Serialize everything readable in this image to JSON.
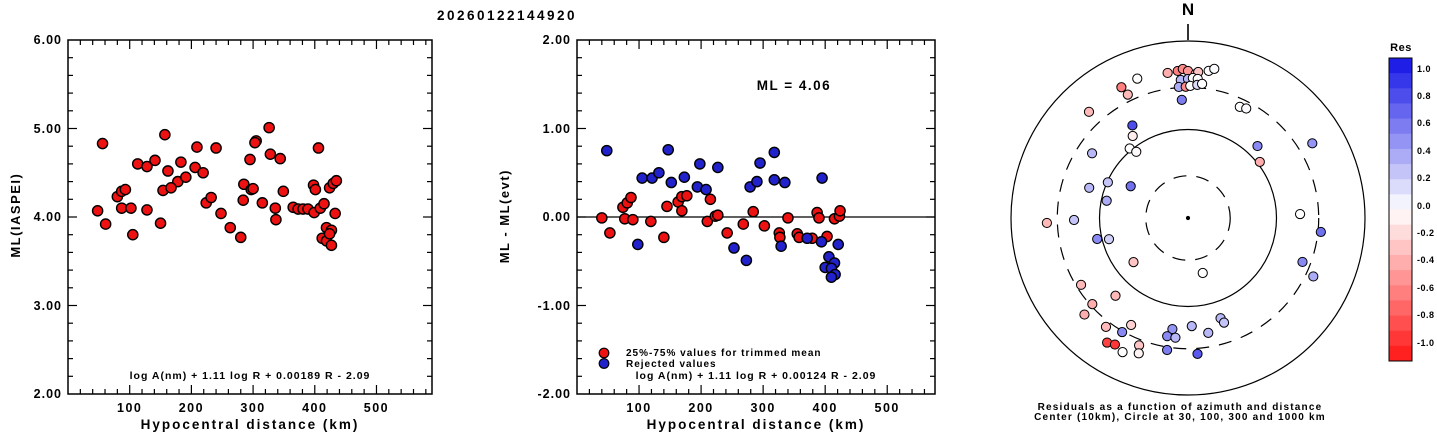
{
  "title": "20260122144920",
  "chart_data": [
    {
      "type": "scatter",
      "name": "magnitude-vs-distance",
      "xlabel": "Hypocentral distance (km)",
      "ylabel": "ML(IASPEI)",
      "annotation": "log A(nm) + 1.11 log R + 0.00189 R - 2.09",
      "xlim": [
        0,
        590
      ],
      "ylim": [
        2,
        6
      ],
      "xticks": [
        100,
        200,
        300,
        400,
        500
      ],
      "yticks": [
        {
          "v": 6,
          "label": "6.00"
        },
        {
          "v": 5,
          "label": "5.00"
        },
        {
          "v": 4,
          "label": "4.00"
        },
        {
          "v": 3,
          "label": "3.00"
        },
        {
          "v": 2,
          "label": "2.00"
        }
      ],
      "marker_color": "#ee1111",
      "points": [
        [
          56,
          4.83
        ],
        [
          157,
          4.93
        ],
        [
          209,
          4.79
        ],
        [
          240,
          4.78
        ],
        [
          305,
          4.86
        ],
        [
          326,
          5.01
        ],
        [
          406,
          4.78
        ],
        [
          113,
          4.6
        ],
        [
          128,
          4.57
        ],
        [
          141,
          4.64
        ],
        [
          162,
          4.52
        ],
        [
          183,
          4.62
        ],
        [
          206,
          4.56
        ],
        [
          219,
          4.5
        ],
        [
          178,
          4.4
        ],
        [
          191,
          4.45
        ],
        [
          154,
          4.3
        ],
        [
          167,
          4.33
        ],
        [
          80,
          4.23
        ],
        [
          87,
          4.29
        ],
        [
          93,
          4.31
        ],
        [
          48,
          4.07
        ],
        [
          87,
          4.1
        ],
        [
          102,
          4.1
        ],
        [
          128,
          4.08
        ],
        [
          61,
          3.92
        ],
        [
          105,
          3.8
        ],
        [
          150,
          3.93
        ],
        [
          224,
          4.16
        ],
        [
          232,
          4.22
        ],
        [
          248,
          4.04
        ],
        [
          263,
          3.88
        ],
        [
          280,
          3.77
        ],
        [
          285,
          4.37
        ],
        [
          297,
          4.31
        ],
        [
          284,
          4.19
        ],
        [
          303,
          4.84
        ],
        [
          328,
          4.71
        ],
        [
          344,
          4.66
        ],
        [
          295,
          4.65
        ],
        [
          300,
          4.32
        ],
        [
          349,
          4.29
        ],
        [
          315,
          4.16
        ],
        [
          336,
          4.1
        ],
        [
          337,
          3.97
        ],
        [
          365,
          4.11
        ],
        [
          373,
          4.09
        ],
        [
          381,
          4.09
        ],
        [
          389,
          4.09
        ],
        [
          399,
          4.05
        ],
        [
          409,
          4.1
        ],
        [
          415,
          4.15
        ],
        [
          398,
          4.36
        ],
        [
          401,
          4.31
        ],
        [
          424,
          4.33
        ],
        [
          430,
          4.38
        ],
        [
          435,
          4.41
        ],
        [
          433,
          4.04
        ],
        [
          419,
          3.88
        ],
        [
          427,
          3.85
        ],
        [
          412,
          3.76
        ],
        [
          419,
          3.73
        ],
        [
          427,
          3.68
        ],
        [
          424,
          3.81
        ]
      ]
    },
    {
      "type": "scatter",
      "name": "residual-vs-distance",
      "xlabel": "Hypocentral distance (km)",
      "ylabel": "ML - ML(evt)",
      "ml_label": "ML = 4.06",
      "annotation": "log A(nm) + 1.11 log R + 0.00124 R - 2.09",
      "xlim": [
        0,
        577
      ],
      "ylim": [
        -2,
        2
      ],
      "hline": 0,
      "xticks": [
        100,
        200,
        300,
        400,
        500
      ],
      "yticks": [
        {
          "v": 2,
          "label": "2.00"
        },
        {
          "v": 1,
          "label": "1.00"
        },
        {
          "v": 0,
          "label": "0.00"
        },
        {
          "v": -1,
          "label": "-1.00"
        },
        {
          "v": -2,
          "label": "-2.00"
        }
      ],
      "series": [
        {
          "name": "25%-75% values for trimmed mean",
          "color": "#ee1111",
          "points": [
            [
              74,
              0.11
            ],
            [
              81,
              0.16
            ],
            [
              87,
              0.22
            ],
            [
              40,
              -0.01
            ],
            [
              77,
              -0.02
            ],
            [
              90,
              -0.03
            ],
            [
              53,
              -0.18
            ],
            [
              119,
              -0.05
            ],
            [
              140,
              -0.23
            ],
            [
              145,
              0.12
            ],
            [
              163,
              0.17
            ],
            [
              169,
              0.23
            ],
            [
              177,
              0.24
            ],
            [
              169,
              0.07
            ],
            [
              215,
              0.2
            ],
            [
              210,
              -0.05
            ],
            [
              223,
              0.01
            ],
            [
              227,
              0.02
            ],
            [
              242,
              -0.18
            ],
            [
              268,
              -0.08
            ],
            [
              284,
              0.06
            ],
            [
              302,
              -0.1
            ],
            [
              340,
              -0.01
            ],
            [
              387,
              0.05
            ],
            [
              390,
              -0.01
            ],
            [
              415,
              -0.02
            ],
            [
              423,
              0.01
            ],
            [
              424,
              0.07
            ],
            [
              326,
              -0.18
            ],
            [
              327,
              -0.23
            ],
            [
              355,
              -0.19
            ],
            [
              358,
              -0.23
            ],
            [
              379,
              -0.24
            ],
            [
              403,
              -0.22
            ]
          ]
        },
        {
          "name": "Rejected values",
          "color": "#2222cc",
          "points": [
            [
              48,
              0.75
            ],
            [
              147,
              0.76
            ],
            [
              105,
              0.44
            ],
            [
              121,
              0.44
            ],
            [
              132,
              0.5
            ],
            [
              152,
              0.39
            ],
            [
              173,
              0.45
            ],
            [
              198,
              0.6
            ],
            [
              194,
              0.34
            ],
            [
              208,
              0.31
            ],
            [
              227,
              0.56
            ],
            [
              279,
              0.34
            ],
            [
              290,
              0.4
            ],
            [
              295,
              0.61
            ],
            [
              98,
              -0.31
            ],
            [
              253,
              -0.35
            ],
            [
              273,
              -0.49
            ],
            [
              318,
              0.73
            ],
            [
              318,
              0.42
            ],
            [
              335,
              0.39
            ],
            [
              395,
              0.44
            ],
            [
              329,
              -0.33
            ],
            [
              371,
              -0.24
            ],
            [
              394,
              -0.28
            ],
            [
              421,
              -0.31
            ],
            [
              406,
              -0.45
            ],
            [
              415,
              -0.52
            ],
            [
              400,
              -0.57
            ],
            [
              410,
              -0.58
            ],
            [
              416,
              -0.65
            ],
            [
              410,
              -0.68
            ]
          ]
        }
      ]
    },
    {
      "type": "polar_scatter",
      "name": "residuals-azimuth-distance",
      "north_label": "N",
      "caption_line1": "Residuals as a function of azimuth and distance",
      "caption_line2": "Center (10km), Circle at 30, 100, 300 and 1000 km",
      "center_km": 10,
      "rings": [
        {
          "km": 30,
          "style": "dashed"
        },
        {
          "km": 100,
          "style": "solid"
        },
        {
          "km": 300,
          "style": "dashed"
        },
        {
          "km": 1000,
          "style": "solid"
        }
      ],
      "colorbar": {
        "title": "Res",
        "max": 1.0,
        "min": -1.0,
        "step": 0.1,
        "labels": [
          "1.0",
          "0.8",
          "0.6",
          "0.4",
          "0.2",
          "0.0",
          "-0.2",
          "-0.4",
          "-0.6",
          "-0.8",
          "-1.0"
        ]
      },
      "points_az_km_res": [
        [
          333,
          455,
          -0.55
        ],
        [
          334,
          356,
          -0.3
        ],
        [
          340,
          474,
          0
        ],
        [
          317,
          437,
          -0.3
        ],
        [
          329,
          166,
          0.75
        ],
        [
          326,
          131,
          -0.08
        ],
        [
          320,
          106,
          0
        ],
        [
          322,
          89,
          -0.02
        ],
        [
          304,
          203,
          0.3
        ],
        [
          287,
          147,
          0.3
        ],
        [
          299,
          55,
          0.6
        ],
        [
          294,
          98,
          0.25
        ],
        [
          282,
          87,
          0.35
        ],
        [
          268,
          394,
          -0.3
        ],
        [
          269,
          194,
          0.25
        ],
        [
          352,
          452,
          -0.35
        ],
        [
          356,
          463,
          -0.55
        ],
        [
          358,
          484,
          -0.5
        ],
        [
          0,
          459,
          -0.45
        ],
        [
          3,
          425,
          -0.3
        ],
        [
          4,
          451,
          -0.25
        ],
        [
          8,
          477,
          0
        ],
        [
          10,
          514,
          0.02
        ],
        [
          357,
          364,
          0.3
        ],
        [
          0,
          372,
          0.3
        ],
        [
          2,
          383,
          0
        ],
        [
          4,
          376,
          0
        ],
        [
          356,
          305,
          0.35
        ],
        [
          359,
          304,
          -0.5
        ],
        [
          1,
          311,
          0
        ],
        [
          4,
          322,
          0.15
        ],
        [
          6,
          334,
          0
        ],
        [
          357,
          217,
          0.55
        ],
        [
          25,
          243,
          0
        ],
        [
          28,
          252,
          0.02
        ],
        [
          44,
          135,
          0.5
        ],
        [
          59,
          435,
          0.45
        ],
        [
          52,
          107,
          -0.35
        ],
        [
          88,
          185,
          0
        ],
        [
          257,
          113,
          0.5
        ],
        [
          255,
          84,
          0.2
        ],
        [
          231,
          62,
          -0.25
        ],
        [
          238,
          266,
          -0.3
        ],
        [
          228,
          285,
          -0.35
        ],
        [
          223,
          159,
          -0.3
        ],
        [
          227,
          398,
          -0.35
        ],
        [
          217,
          347,
          -0.3
        ],
        [
          208,
          234,
          -0.2
        ],
        [
          210,
          308,
          0.5
        ],
        [
          213,
          477,
          -0.8
        ],
        [
          210,
          448,
          -0.85
        ],
        [
          206,
          486,
          0
        ],
        [
          201,
          348,
          -0.25
        ],
        [
          200,
          424,
          -0.05
        ],
        [
          188,
          185,
          0.45
        ],
        [
          190,
          227,
          0.5
        ],
        [
          186,
          229,
          0.3
        ],
        [
          189,
          324,
          0.55
        ],
        [
          176,
          346,
          0.7
        ],
        [
          178,
          167,
          0.3
        ],
        [
          170,
          208,
          0.3
        ],
        [
          165,
          44,
          0
        ],
        [
          162,
          155,
          0.3
        ],
        [
          161,
          178,
          0.25
        ],
        [
          96,
          323,
          0.6
        ],
        [
          111,
          243,
          0.5
        ],
        [
          115,
          365,
          0.35
        ]
      ]
    }
  ]
}
